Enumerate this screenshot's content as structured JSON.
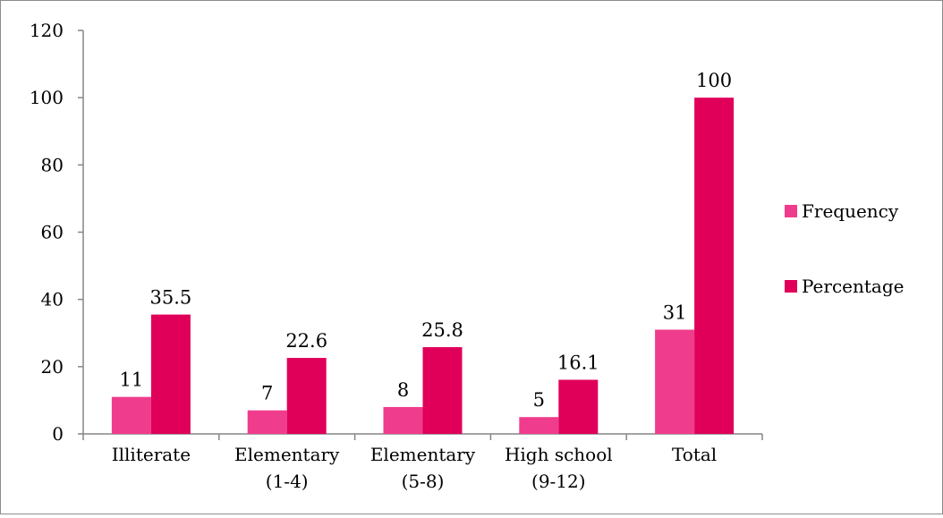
{
  "chart_data": {
    "type": "bar",
    "categories": [
      [
        "Illiterate"
      ],
      [
        "Elementary",
        "(1-4)"
      ],
      [
        "Elementary",
        "(5-8)"
      ],
      [
        "High school",
        "(9-12)"
      ],
      [
        "Total"
      ]
    ],
    "series": [
      {
        "name": "Frequency",
        "values": [
          11,
          7,
          8,
          5,
          31
        ],
        "color": "#f03c8c",
        "labels": [
          "11",
          "7",
          "8",
          "5",
          "31"
        ]
      },
      {
        "name": "Percentage",
        "values": [
          35.5,
          22.6,
          25.8,
          16.1,
          100
        ],
        "color": "#e0005a",
        "labels": [
          "35.5",
          "22.6",
          "25.8",
          "16.1",
          "100"
        ]
      }
    ],
    "ylim": [
      0,
      120
    ],
    "yticks": [
      0,
      20,
      40,
      60,
      80,
      100,
      120
    ],
    "grid": false,
    "legend": "right",
    "title": "",
    "xlabel": "",
    "ylabel": ""
  }
}
